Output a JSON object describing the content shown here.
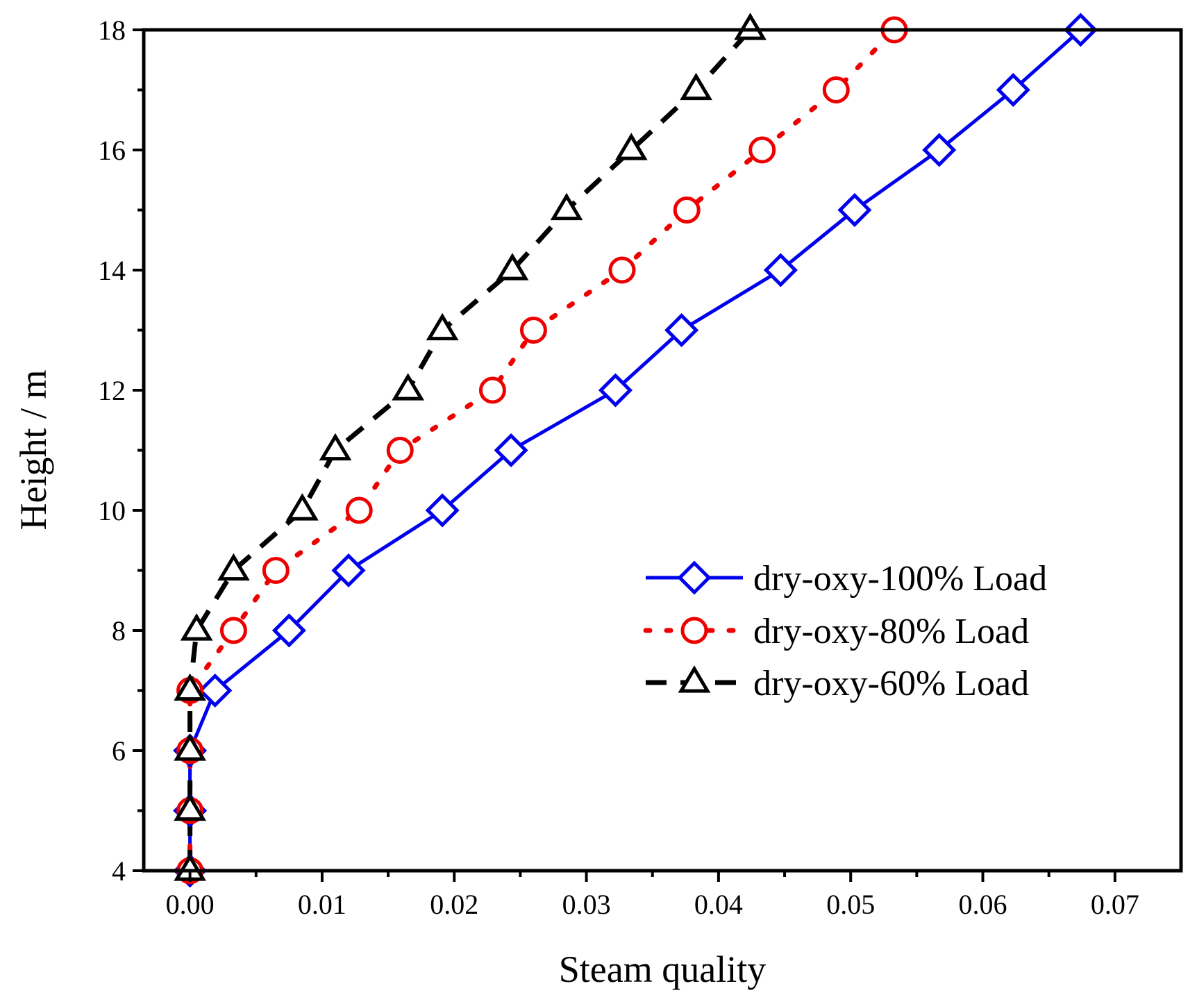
{
  "chart_data": {
    "type": "line",
    "title": "",
    "xlabel": "Steam quality",
    "ylabel": "Height / m",
    "xlim": [
      -0.0035,
      0.075
    ],
    "ylim": [
      4,
      18
    ],
    "xticks": [
      0.0,
      0.01,
      0.02,
      0.03,
      0.04,
      0.05,
      0.06,
      0.07
    ],
    "xtick_labels": [
      "0.00",
      "0.01",
      "0.02",
      "0.03",
      "0.04",
      "0.05",
      "0.06",
      "0.07"
    ],
    "yticks": [
      4,
      6,
      8,
      10,
      12,
      14,
      16,
      18
    ],
    "ytick_labels": [
      "4",
      "6",
      "8",
      "10",
      "12",
      "14",
      "16",
      "18"
    ],
    "grid": false,
    "legend_position": "middle-right",
    "series": [
      {
        "name": "dry-oxy-100% Load",
        "color": "#0000ee",
        "line_style": "solid",
        "marker": "diamond",
        "x": [
          0.0,
          0.0,
          0.0,
          0.0019,
          0.0075,
          0.012,
          0.0191,
          0.0243,
          0.0322,
          0.0372,
          0.0447,
          0.0503,
          0.0567,
          0.0623,
          0.0674
        ],
        "y": [
          4,
          5,
          6,
          7,
          8,
          9,
          10,
          11,
          12,
          13,
          14,
          15,
          16,
          17,
          18
        ]
      },
      {
        "name": "dry-oxy-80% Load",
        "color": "#ee0000",
        "line_style": "dotted",
        "marker": "circle",
        "x": [
          0.0,
          0.0,
          0.0,
          0.0,
          0.0033,
          0.0065,
          0.0128,
          0.0159,
          0.0229,
          0.026,
          0.0327,
          0.0376,
          0.0433,
          0.0489,
          0.0533
        ],
        "y": [
          4,
          5,
          6,
          7,
          8,
          9,
          10,
          11,
          12,
          13,
          14,
          15,
          16,
          17,
          18
        ]
      },
      {
        "name": "dry-oxy-60% Load",
        "color": "#000000",
        "line_style": "dashed",
        "marker": "triangle",
        "x": [
          0.0,
          0.0,
          0.0,
          0.0,
          0.0005,
          0.0033,
          0.0085,
          0.011,
          0.0165,
          0.0191,
          0.0244,
          0.0285,
          0.0334,
          0.0383,
          0.0424
        ],
        "y": [
          4,
          5,
          6,
          7,
          8,
          9,
          10,
          11,
          12,
          13,
          14,
          15,
          16,
          17,
          18
        ]
      }
    ]
  }
}
